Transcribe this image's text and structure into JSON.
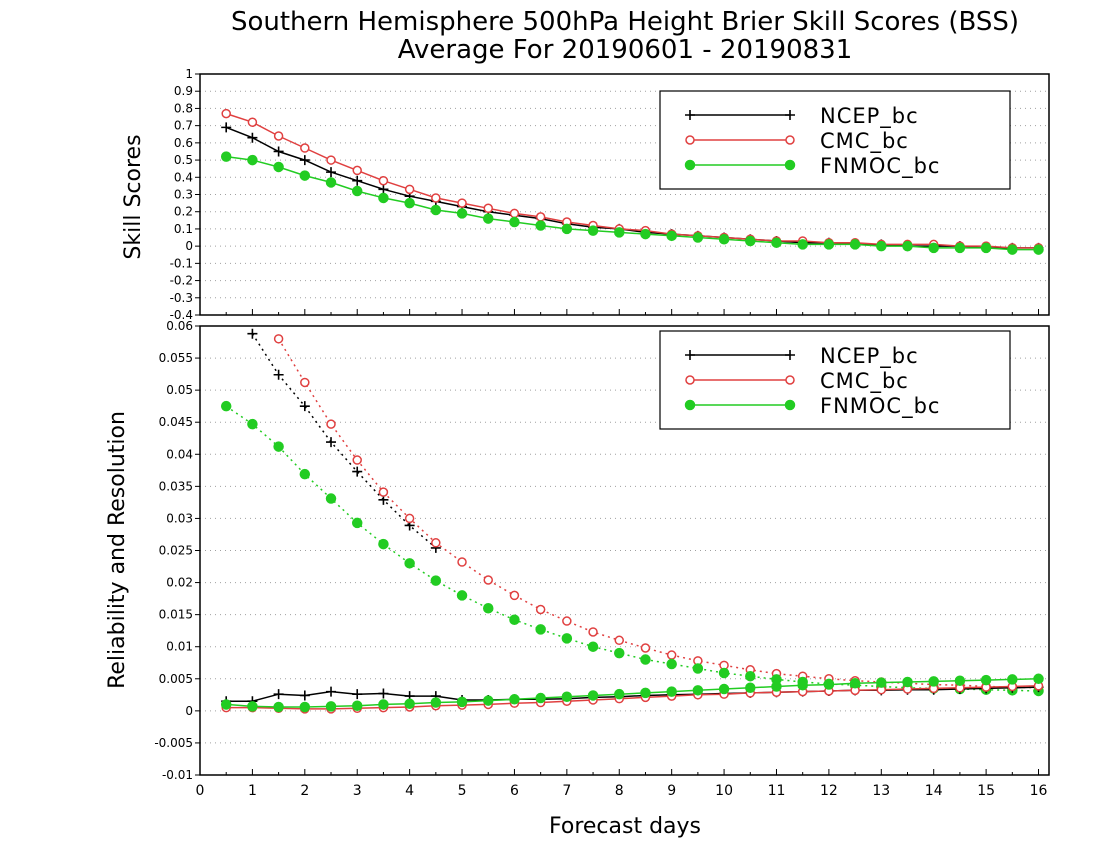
{
  "title": "Southern Hemisphere 500hPa Height Brier Skill Scores (BSS)",
  "subtitle": "Average For 20190601 - 20190831",
  "xlabel": "Forecast days",
  "colors": {
    "NCEP_bc": "#000000",
    "CMC_bc": "#e04040",
    "FNMOC_bc": "#22cc22"
  },
  "chart_data": [
    {
      "type": "line",
      "ylabel": "Skill Scores",
      "xlim": [
        0,
        16.2
      ],
      "ylim": [
        -0.4,
        1
      ],
      "xticks": [
        0,
        1,
        2,
        3,
        4,
        5,
        6,
        7,
        8,
        9,
        10,
        11,
        12,
        13,
        14,
        15,
        16
      ],
      "yticks": [
        -0.4,
        -0.3,
        -0.2,
        -0.1,
        0,
        0.1,
        0.2,
        0.3,
        0.4,
        0.5,
        0.6,
        0.7,
        0.8,
        0.9,
        1
      ],
      "ytick_labels": [
        "-0.4",
        "-0.3",
        "-0.2",
        "-0.1",
        "0",
        "0.1",
        "0.2",
        "0.3",
        "0.4",
        "0.5",
        "0.6",
        "0.7",
        "0.8",
        "0.9",
        "1"
      ],
      "grid": true,
      "legend_position": "top-right",
      "x": [
        0.5,
        1,
        1.5,
        2,
        2.5,
        3,
        3.5,
        4,
        4.5,
        5,
        5.5,
        6,
        6.5,
        7,
        7.5,
        8,
        8.5,
        9,
        9.5,
        10,
        10.5,
        11,
        11.5,
        12,
        12.5,
        13,
        13.5,
        14,
        14.5,
        15,
        15.5,
        16
      ],
      "series": [
        {
          "name": "NCEP_bc",
          "marker": "plus",
          "style": "solid",
          "values": [
            0.69,
            0.63,
            0.55,
            0.5,
            0.43,
            0.38,
            0.33,
            0.29,
            0.26,
            0.23,
            0.2,
            0.18,
            0.16,
            0.13,
            0.11,
            0.1,
            0.08,
            0.07,
            0.06,
            0.05,
            0.04,
            0.03,
            0.02,
            0.02,
            0.01,
            0.01,
            0.0,
            0.0,
            0.0,
            -0.01,
            -0.01,
            -0.01
          ]
        },
        {
          "name": "CMC_bc",
          "marker": "circle-open",
          "style": "solid",
          "values": [
            0.77,
            0.72,
            0.64,
            0.57,
            0.5,
            0.44,
            0.38,
            0.33,
            0.28,
            0.25,
            0.22,
            0.19,
            0.17,
            0.14,
            0.12,
            0.1,
            0.09,
            0.07,
            0.06,
            0.05,
            0.04,
            0.03,
            0.03,
            0.02,
            0.02,
            0.01,
            0.01,
            0.01,
            0.0,
            0.0,
            -0.01,
            -0.01
          ]
        },
        {
          "name": "FNMOC_bc",
          "marker": "circle-filled",
          "style": "solid",
          "values": [
            0.52,
            0.5,
            0.46,
            0.41,
            0.37,
            0.32,
            0.28,
            0.25,
            0.21,
            0.19,
            0.16,
            0.14,
            0.12,
            0.1,
            0.09,
            0.08,
            0.07,
            0.06,
            0.05,
            0.04,
            0.03,
            0.02,
            0.01,
            0.01,
            0.01,
            0.0,
            0.0,
            -0.01,
            -0.01,
            -0.01,
            -0.02,
            -0.02
          ]
        }
      ]
    },
    {
      "type": "line",
      "ylabel": "Reliability and Resolution",
      "xlim": [
        0,
        16.2
      ],
      "ylim": [
        -0.01,
        0.06
      ],
      "xticks": [
        0,
        1,
        2,
        3,
        4,
        5,
        6,
        7,
        8,
        9,
        10,
        11,
        12,
        13,
        14,
        15,
        16
      ],
      "yticks": [
        -0.01,
        -0.005,
        0,
        0.005,
        0.01,
        0.015,
        0.02,
        0.025,
        0.03,
        0.035,
        0.04,
        0.045,
        0.05,
        0.055,
        0.06
      ],
      "ytick_labels": [
        "-0.01",
        "-0.005",
        "0",
        "0.005",
        "0.01",
        "0.015",
        "0.02",
        "0.025",
        "0.03",
        "0.035",
        "0.04",
        "0.045",
        "0.05",
        "0.055",
        "0.06"
      ],
      "grid": true,
      "legend_position": "top-right",
      "x": [
        0.5,
        1,
        1.5,
        2,
        2.5,
        3,
        3.5,
        4,
        4.5,
        5,
        5.5,
        6,
        6.5,
        7,
        7.5,
        8,
        8.5,
        9,
        9.5,
        10,
        10.5,
        11,
        11.5,
        12,
        12.5,
        13,
        13.5,
        14,
        14.5,
        15,
        15.5,
        16
      ],
      "series": [
        {
          "name": "NCEP_bc",
          "group": "resolution",
          "marker": "plus",
          "style": "dotted",
          "values": [
            null,
            0.0588,
            0.0524,
            0.0475,
            0.0419,
            0.0373,
            0.0329,
            0.0289,
            0.0254,
            null,
            null,
            null,
            null,
            null,
            null,
            null,
            null,
            null,
            null,
            null,
            null,
            null,
            null,
            null,
            null,
            null,
            null,
            null,
            null,
            null,
            null,
            null
          ]
        },
        {
          "name": "CMC_bc",
          "group": "resolution",
          "marker": "circle-open",
          "style": "dotted",
          "values": [
            null,
            null,
            0.058,
            0.0512,
            0.0447,
            0.0391,
            0.0341,
            0.03,
            0.0262,
            0.0232,
            0.0204,
            0.018,
            0.0158,
            0.014,
            0.0123,
            0.011,
            0.0098,
            0.0087,
            0.0078,
            0.0071,
            0.0064,
            0.0058,
            0.0054,
            0.005,
            0.0047,
            0.0045,
            0.0043,
            0.0041,
            0.004,
            0.0038,
            0.0037,
            0.0036
          ]
        },
        {
          "name": "FNMOC_bc",
          "group": "resolution",
          "marker": "circle-filled",
          "style": "dotted",
          "values": [
            0.0475,
            0.0447,
            0.0412,
            0.0369,
            0.0331,
            0.0293,
            0.026,
            0.023,
            0.0203,
            0.018,
            0.016,
            0.0142,
            0.0127,
            0.0113,
            0.01,
            0.009,
            0.008,
            0.0073,
            0.0066,
            0.0059,
            0.0054,
            0.0049,
            0.0045,
            0.0042,
            0.004,
            0.0038,
            0.0036,
            0.0035,
            0.0034,
            0.0033,
            0.0032,
            0.0031
          ]
        },
        {
          "name": "NCEP_bc",
          "group": "reliability",
          "marker": "plus",
          "style": "solid",
          "values": [
            0.0015,
            0.0015,
            0.0026,
            0.0024,
            0.003,
            0.0026,
            0.0027,
            0.0023,
            0.0023,
            0.0017,
            0.0017,
            0.0018,
            0.0018,
            0.0019,
            0.0021,
            0.0022,
            0.0024,
            0.0025,
            0.0026,
            0.0027,
            0.0028,
            0.0029,
            0.003,
            0.0031,
            0.0032,
            0.0032,
            0.0033,
            0.0033,
            0.0034,
            0.0035,
            0.0036,
            0.0037
          ]
        },
        {
          "name": "CMC_bc",
          "group": "reliability",
          "marker": "circle-open",
          "style": "solid",
          "values": [
            0.0005,
            0.0005,
            0.0004,
            0.0003,
            0.0003,
            0.0004,
            0.0005,
            0.0006,
            0.0008,
            0.0009,
            0.001,
            0.0012,
            0.0013,
            0.0015,
            0.0017,
            0.0019,
            0.0021,
            0.0023,
            0.0025,
            0.0026,
            0.0028,
            0.0029,
            0.003,
            0.0031,
            0.0032,
            0.0033,
            0.0034,
            0.0035,
            0.0036,
            0.0037,
            0.0038,
            0.0039
          ]
        },
        {
          "name": "FNMOC_bc",
          "group": "reliability",
          "marker": "circle-filled",
          "style": "solid",
          "values": [
            0.001,
            0.0007,
            0.0006,
            0.0006,
            0.0007,
            0.0008,
            0.001,
            0.0011,
            0.0013,
            0.0014,
            0.0016,
            0.0018,
            0.002,
            0.0022,
            0.0024,
            0.0026,
            0.0028,
            0.003,
            0.0032,
            0.0034,
            0.0036,
            0.0038,
            0.004,
            0.0041,
            0.0043,
            0.0044,
            0.0045,
            0.0046,
            0.0047,
            0.0048,
            0.0049,
            0.005
          ]
        }
      ]
    }
  ]
}
